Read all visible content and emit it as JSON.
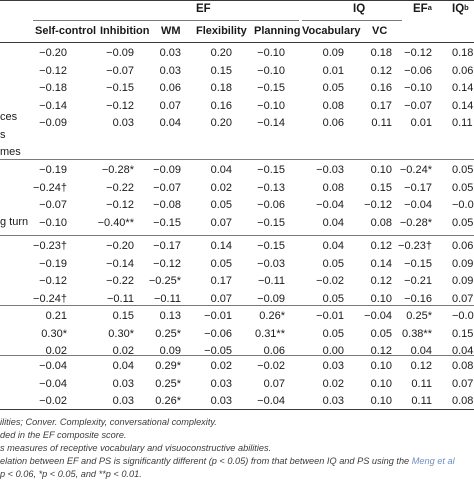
{
  "header": {
    "groups": [
      {
        "label": "EF",
        "sup": ""
      },
      {
        "label": "IQ",
        "sup": ""
      },
      {
        "label": "EF",
        "sup": "a"
      },
      {
        "label": "IQ",
        "sup": "b"
      }
    ],
    "columns": [
      "Self-control",
      "Inhibition",
      "WM",
      "Flexibility",
      "Planning",
      "Vocabulary",
      "VC"
    ]
  },
  "row_labels": [
    {
      "text": "ces"
    },
    {
      "text": "s"
    },
    {
      "text": "mes"
    },
    {
      "text": "g turn"
    }
  ],
  "rows": [
    {
      "cells": [
        "−0.20",
        "−0.09",
        "0.03",
        "0.20",
        "−0.10",
        "0.09",
        "0.18",
        "−0.12",
        "0.18"
      ]
    },
    {
      "cells": [
        "−0.12",
        "−0.07",
        "0.03",
        "0.15",
        "−0.10",
        "0.01",
        "0.12",
        "−0.06",
        "0.06"
      ]
    },
    {
      "cells": [
        "−0.18",
        "−0.15",
        "0.06",
        "0.18",
        "−0.15",
        "0.05",
        "0.16",
        "−0.10",
        "0.14"
      ]
    },
    {
      "cells": [
        "−0.14",
        "−0.12",
        "0.07",
        "0.16",
        "−0.10",
        "0.08",
        "0.17",
        "−0.07",
        "0.14"
      ]
    },
    {
      "cells": [
        "−0.09",
        "0.03",
        "0.04",
        "0.20",
        "−0.14",
        "0.06",
        "0.11",
        "0.01",
        "0.11"
      ]
    },
    {
      "cells": [
        "−0.19",
        "−0.28*",
        "−0.09",
        "0.04",
        "−0.15",
        "−0.03",
        "0.10",
        "−0.24*",
        "0.05"
      ]
    },
    {
      "cells": [
        "−0.24†",
        "−0.22",
        "−0.07",
        "0.02",
        "−0.13",
        "0.08",
        "0.15",
        "−0.17",
        "0.05"
      ]
    },
    {
      "cells": [
        "−0.07",
        "−0.12",
        "−0.08",
        "0.05",
        "−0.06",
        "−0.04",
        "−0.12",
        "−0.04",
        "−0.09"
      ]
    },
    {
      "cells": [
        "−0.10",
        "−0.40**",
        "−0.15",
        "0.07",
        "−0.15",
        "0.04",
        "0.08",
        "−0.28*",
        "0.05"
      ]
    },
    {
      "cells": [
        "−0.23†",
        "−0.20",
        "−0.17",
        "0.14",
        "−0.15",
        "0.04",
        "0.12",
        "−0.23†",
        "0.06"
      ]
    },
    {
      "cells": [
        "−0.19",
        "−0.14",
        "−0.12",
        "0.05",
        "−0.03",
        "0.05",
        "0.14",
        "−0.15",
        "0.09"
      ]
    },
    {
      "cells": [
        "−0.12",
        "−0.22",
        "−0.25*",
        "0.17",
        "−0.11",
        "−0.02",
        "0.12",
        "−0.21",
        "0.09"
      ]
    },
    {
      "cells": [
        "−0.24†",
        "−0.11",
        "−0.11",
        "0.07",
        "−0.09",
        "0.05",
        "0.10",
        "−0.16",
        "0.07"
      ]
    },
    {
      "cells": [
        "0.21",
        "0.15",
        "0.13",
        "−0.01",
        "0.26*",
        "−0.01",
        "−0.04",
        "0.25*",
        "−0.02"
      ]
    },
    {
      "cells": [
        "0.30*",
        "0.30*",
        "0.25*",
        "−0.06",
        "0.31**",
        "0.05",
        "0.05",
        "0.38**",
        "0.15"
      ]
    },
    {
      "cells": [
        "0.02",
        "0.02",
        "0.09",
        "−0.05",
        "0.06",
        "0.00",
        "0.12",
        "0.04",
        "0.04"
      ]
    },
    {
      "cells": [
        "−0.04",
        "0.04",
        "0.29*",
        "0.02",
        "−0.02",
        "0.03",
        "0.10",
        "0.12",
        "0.08"
      ]
    },
    {
      "cells": [
        "−0.04",
        "0.03",
        "0.25*",
        "0.03",
        "0.07",
        "0.02",
        "0.10",
        "0.11",
        "0.07"
      ]
    },
    {
      "cells": [
        "−0.02",
        "0.03",
        "0.26*",
        "0.03",
        "−0.04",
        "0.03",
        "0.10",
        "0.11",
        "0.08"
      ]
    }
  ],
  "footnotes": [
    {
      "text": "ilities; Conver. Complexity, conversational complexity."
    },
    {
      "text": "ded in the EF composite score."
    },
    {
      "text": "s measures of receptive vocabulary and visuoconstructive abilities."
    },
    {
      "pre": "elation between EF and PS is significantly different (p < 0.05) from that between IQ and PS using the ",
      "link": "Meng et al"
    },
    {
      "text": "p < 0.06, *p < 0.05, and **p < 0.01."
    }
  ]
}
